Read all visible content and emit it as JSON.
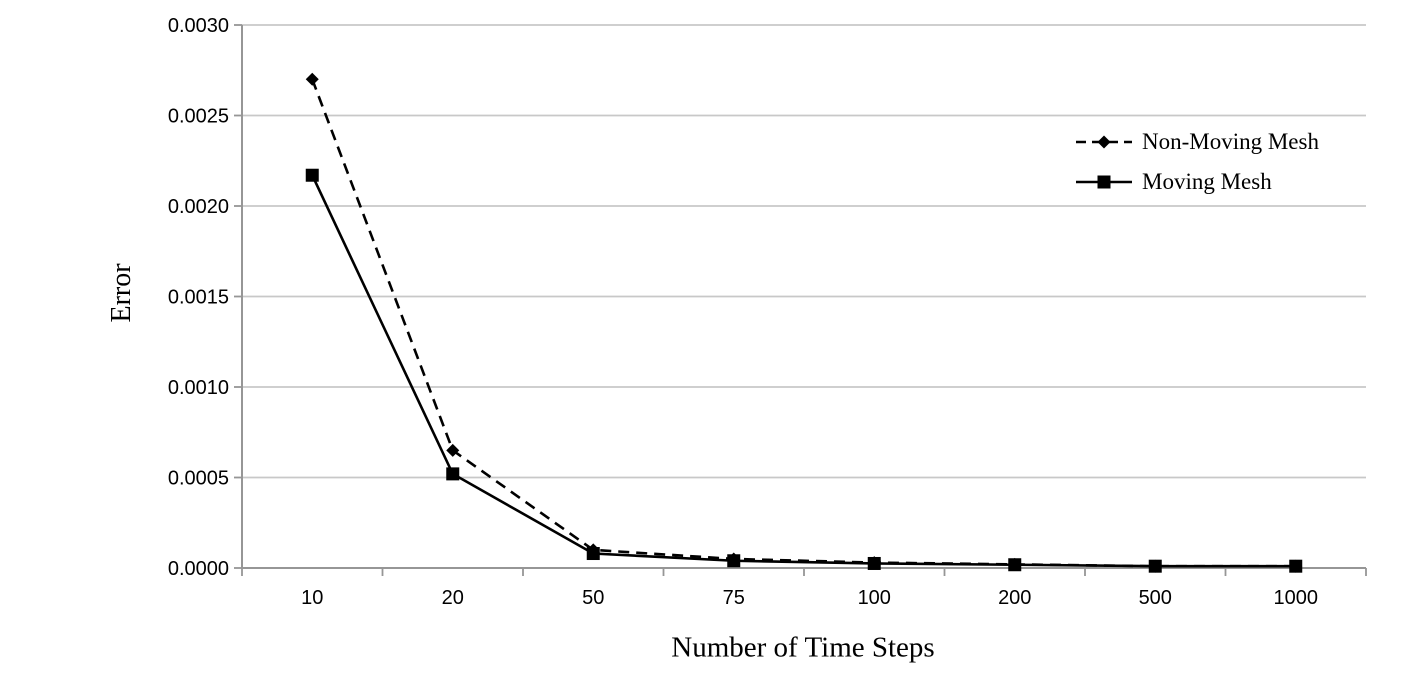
{
  "chart_data": {
    "type": "line",
    "title": "",
    "xlabel": "Number of Time Steps",
    "ylabel": "Error",
    "categories": [
      "10",
      "20",
      "50",
      "75",
      "100",
      "200",
      "500",
      "1000"
    ],
    "y_tick_labels": [
      "0.0000",
      "0.0005",
      "0.0010",
      "0.0015",
      "0.0020",
      "0.0025",
      "0.0030"
    ],
    "ylim": [
      0,
      0.003
    ],
    "y_tick_step": 0.0005,
    "grid": true,
    "legend_position": "right",
    "series": [
      {
        "name": "Non-Moving Mesh",
        "marker": "diamond",
        "line_style": "dashed",
        "color": "#000000",
        "values": [
          0.0027,
          0.00065,
          0.0001,
          5e-05,
          3e-05,
          2e-05,
          1e-05,
          1e-05
        ]
      },
      {
        "name": "Moving Mesh",
        "marker": "square",
        "line_style": "solid",
        "color": "#000000",
        "values": [
          0.00217,
          0.00052,
          8e-05,
          4e-05,
          2.5e-05,
          1.8e-05,
          1e-05,
          1e-05
        ]
      }
    ],
    "colors": {
      "background": "#ffffff",
      "gridline": "#c8c8c8",
      "axis": "#969696",
      "tick_label": "#000000"
    }
  }
}
